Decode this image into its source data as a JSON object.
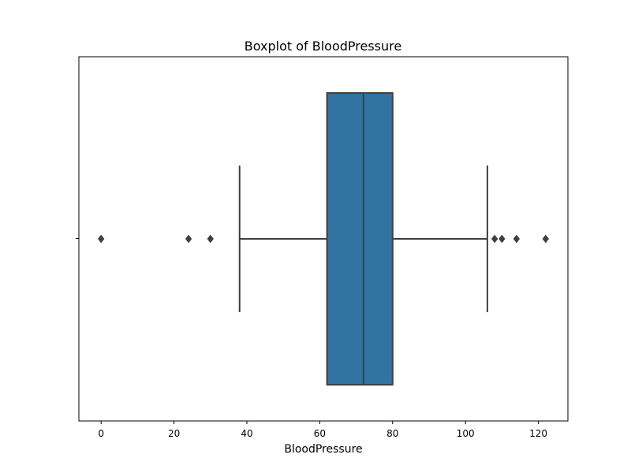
{
  "chart_data": {
    "type": "boxplot",
    "title": "Boxplot of BloodPressure",
    "xlabel": "BloodPressure",
    "ylabel": "",
    "orientation": "horizontal",
    "xlim": [
      -6.1,
      128.1
    ],
    "x_ticks": [
      0,
      20,
      40,
      60,
      80,
      100,
      120
    ],
    "x_tick_labels": [
      "0",
      "20",
      "40",
      "60",
      "80",
      "100",
      "120"
    ],
    "grid": false,
    "legend": "none",
    "box": {
      "whisker_low": 38,
      "q1": 62,
      "median": 72,
      "q3": 80,
      "whisker_high": 106,
      "outliers": [
        0,
        24,
        30,
        108,
        110,
        114,
        122
      ]
    },
    "colors": {
      "box_fill": "#3274a1",
      "line": "#3f3f3f",
      "outlier": "#3f3f3f",
      "frame": "#000000"
    }
  }
}
